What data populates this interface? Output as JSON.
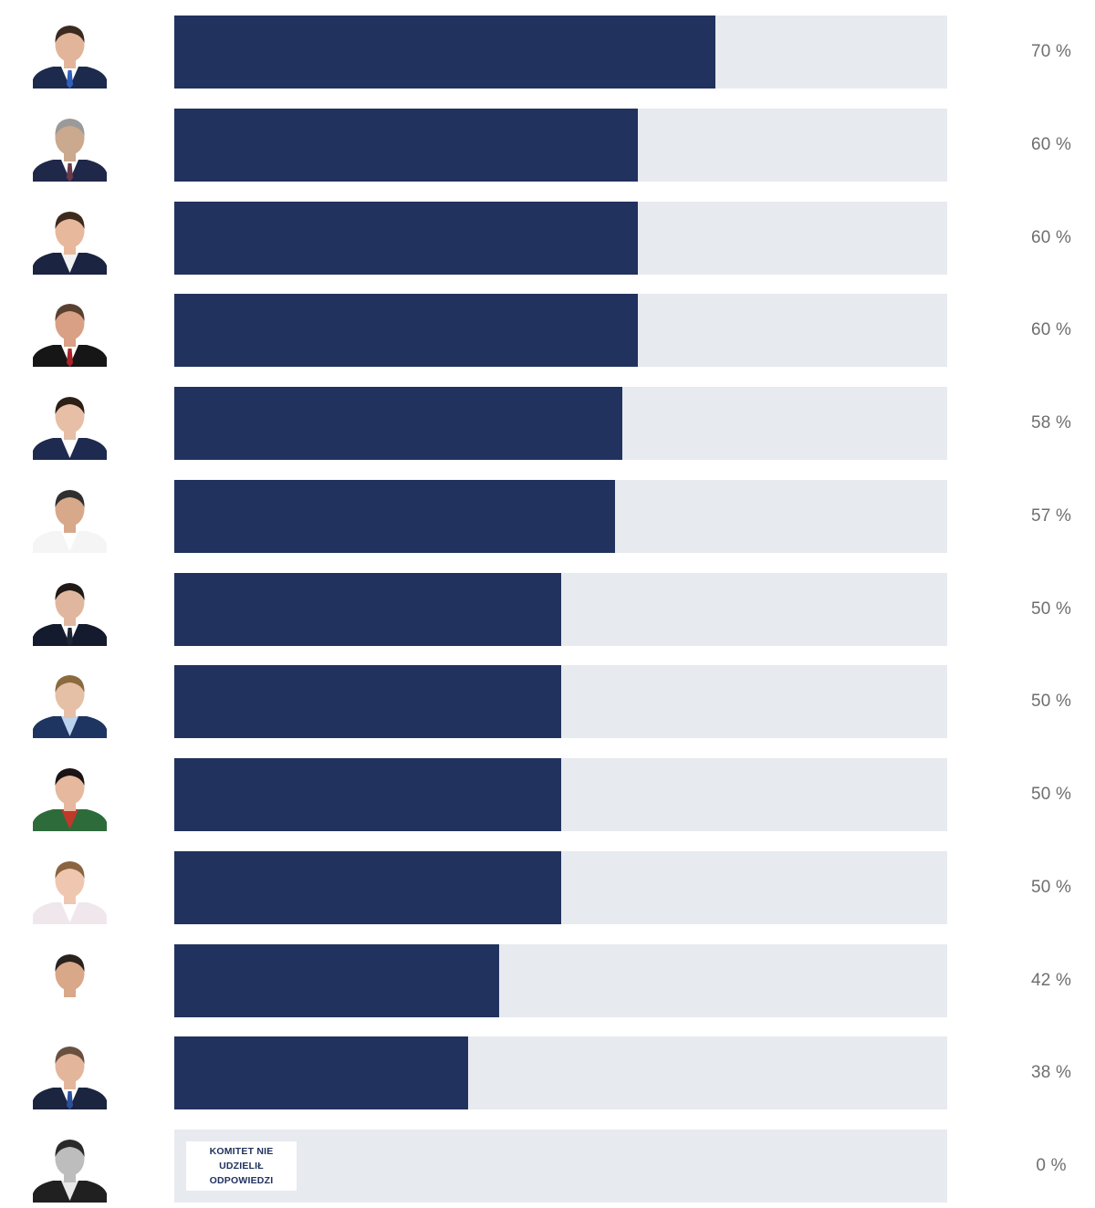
{
  "chart_data": {
    "type": "bar",
    "orientation": "horizontal",
    "unit": "%",
    "ylim": [
      0,
      100
    ],
    "values": [
      70,
      60,
      60,
      60,
      58,
      57,
      50,
      50,
      50,
      50,
      42,
      38,
      0
    ],
    "labels": [
      "70 %",
      "60 %",
      "60 %",
      "60 %",
      "58 %",
      "57 %",
      "50 %",
      "50 %",
      "50 %",
      "50 %",
      "42 %",
      "38 %",
      "0 %"
    ],
    "annotations": [
      {
        "index": 12,
        "lines": [
          "KOMITET NIE",
          "UDZIELIŁ",
          "ODPOWIEDZI"
        ]
      }
    ]
  },
  "colors": {
    "bar_fill": "#22325f",
    "bar_track": "#e7eaee",
    "label_text": "#6e6e6e",
    "note_text": "#22325f"
  },
  "avatars": [
    {
      "icon": "candidate-portrait-icon",
      "suit": "#1c2a4d",
      "shirt": "#ffffff",
      "tie": "#2f5fbf",
      "skin": "#e2b59a",
      "hair": "#3b2a1f"
    },
    {
      "icon": "candidate-portrait-icon",
      "suit": "#20284a",
      "shirt": "#ffffff",
      "tie": "#6a3a4a",
      "skin": "#cba98e",
      "hair": "#9a9a9a"
    },
    {
      "icon": "candidate-portrait-icon",
      "suit": "#1b2440",
      "shirt": "#f2f2f2",
      "tie": "",
      "skin": "#e8b89c",
      "hair": "#3d2a1d"
    },
    {
      "icon": "candidate-portrait-icon",
      "suit": "#161616",
      "shirt": "#ffffff",
      "tie": "#a8232a",
      "skin": "#d9a085",
      "hair": "#5a4030"
    },
    {
      "icon": "candidate-portrait-icon",
      "suit": "#1e2a50",
      "shirt": "#ffffff",
      "tie": "",
      "skin": "#e6bfa6",
      "hair": "#2b1f18"
    },
    {
      "icon": "candidate-portrait-icon",
      "suit": "#f5f5f5",
      "shirt": "#ffffff",
      "tie": "",
      "skin": "#d7a88a",
      "hair": "#2f2f2f"
    },
    {
      "icon": "candidate-portrait-icon",
      "suit": "#141b2e",
      "shirt": "#ffffff",
      "tie": "#1d2433",
      "skin": "#e0b79e",
      "hair": "#1f1a17"
    },
    {
      "icon": "candidate-portrait-icon",
      "suit": "#1d3560",
      "shirt": "#bcd3ee",
      "tie": "",
      "skin": "#e6c0a6",
      "hair": "#8a6a3e"
    },
    {
      "icon": "candidate-portrait-icon",
      "suit": "#2e6b3b",
      "shirt": "#c0392b",
      "tie": "",
      "skin": "#e6b89e",
      "hair": "#1a1416"
    },
    {
      "icon": "candidate-portrait-icon",
      "suit": "#f0e7ec",
      "shirt": "#ffffff",
      "tie": "",
      "skin": "#efc7b0",
      "hair": "#8a6440"
    },
    {
      "icon": "candidate-portrait-icon",
      "suit": "#ffffff",
      "shirt": "#ffffff",
      "tie": "",
      "skin": "#d8a889",
      "hair": "#2a221d"
    },
    {
      "icon": "candidate-portrait-icon",
      "suit": "#1b2540",
      "shirt": "#ffffff",
      "tie": "#2c4f9a",
      "skin": "#e3b69c",
      "hair": "#6a5040"
    },
    {
      "icon": "candidate-portrait-icon",
      "suit": "#202020",
      "shirt": "#e8e8e8",
      "tie": "",
      "skin": "#bdbdbd",
      "hair": "#2a2a2a"
    }
  ]
}
